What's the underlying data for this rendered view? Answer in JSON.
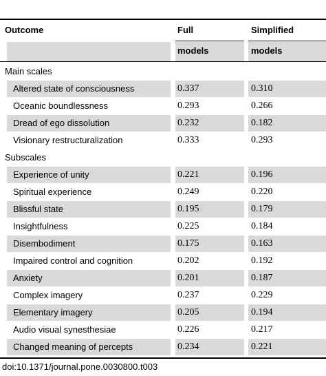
{
  "header": {
    "outcome": "Outcome",
    "col1_line1": "Full",
    "col1_line2": "models",
    "col2_line1": "Simplified",
    "col2_line2": "models"
  },
  "sections": [
    {
      "title": "Main scales",
      "rows": [
        {
          "label": "Altered state of consciousness",
          "full": "0.337",
          "simplified": "0.310"
        },
        {
          "label": "Oceanic boundlessness",
          "full": "0.293",
          "simplified": "0.266"
        },
        {
          "label": "Dread of ego dissolution",
          "full": "0.232",
          "simplified": "0.182"
        },
        {
          "label": "Visionary restructuralization",
          "full": "0.333",
          "simplified": "0.293"
        }
      ]
    },
    {
      "title": "Subscales",
      "rows": [
        {
          "label": "Experience of unity",
          "full": "0.221",
          "simplified": "0.196"
        },
        {
          "label": "Spiritual experience",
          "full": "0.249",
          "simplified": "0.220"
        },
        {
          "label": "Blissful state",
          "full": "0.195",
          "simplified": "0.179"
        },
        {
          "label": "Insightfulness",
          "full": "0.225",
          "simplified": "0.184"
        },
        {
          "label": "Disembodiment",
          "full": "0.175",
          "simplified": "0.163"
        },
        {
          "label": "Impaired control and cognition",
          "full": "0.202",
          "simplified": "0.192"
        },
        {
          "label": "Anxiety",
          "full": "0.201",
          "simplified": "0.187"
        },
        {
          "label": "Complex imagery",
          "full": "0.237",
          "simplified": "0.229"
        },
        {
          "label": "Elementary imagery",
          "full": "0.205",
          "simplified": "0.194"
        },
        {
          "label": "Audio visual synesthesiae",
          "full": "0.226",
          "simplified": "0.217"
        },
        {
          "label": "Changed meaning of percepts",
          "full": "0.234",
          "simplified": "0.221"
        }
      ]
    }
  ],
  "doi": "doi:10.1371/journal.pone.0030800.t003"
}
